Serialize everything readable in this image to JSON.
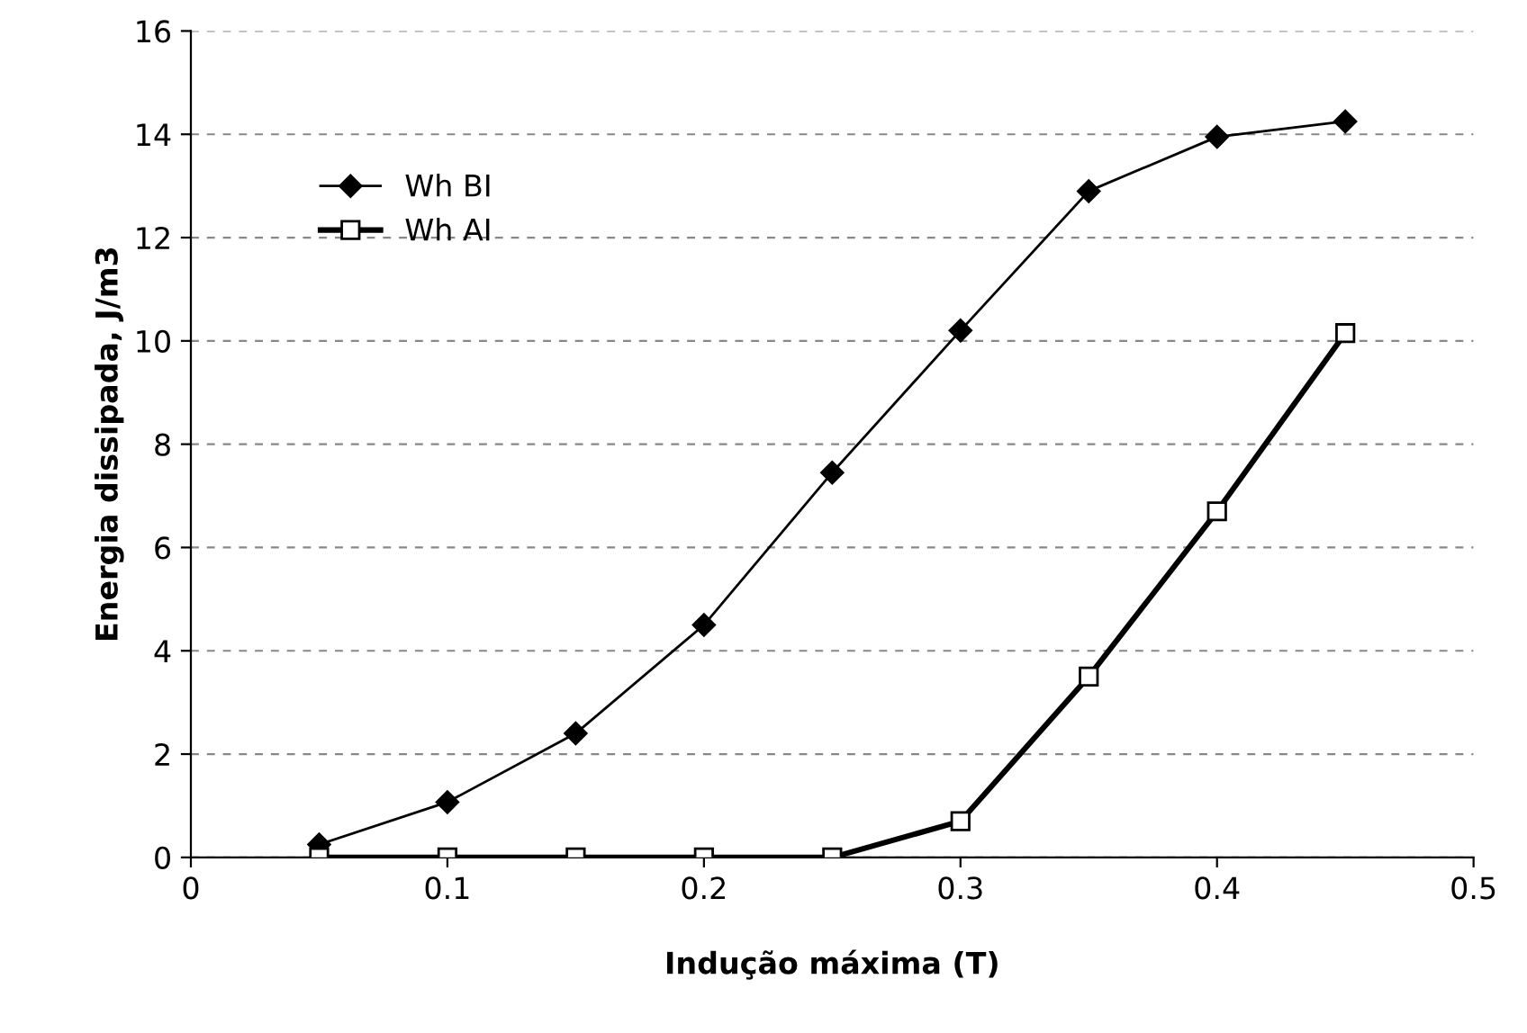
{
  "chart_data": {
    "type": "line",
    "xlabel": "Indução máxima (T)",
    "ylabel": "Energia dissipada, J/m3",
    "x": [
      0.05,
      0.1,
      0.15,
      0.2,
      0.25,
      0.3,
      0.35,
      0.4,
      0.45
    ],
    "series": [
      {
        "name": "Wh BI",
        "color": "#000000",
        "marker": "diamond",
        "values": [
          0.25,
          1.07,
          2.4,
          4.5,
          7.45,
          10.2,
          12.9,
          13.95,
          14.25
        ]
      },
      {
        "name": "Wh AI",
        "color": "#000000",
        "marker": "square",
        "values": [
          0,
          0,
          0,
          0,
          0,
          0.7,
          3.5,
          6.7,
          10.15
        ]
      }
    ],
    "xlim": [
      0,
      0.5
    ],
    "xticks": [
      0,
      0.1,
      0.2,
      0.3,
      0.4,
      0.5
    ],
    "ylim": [
      0,
      16
    ],
    "yticks": [
      0,
      2,
      4,
      6,
      8,
      10,
      12,
      14,
      16
    ],
    "grid": "y",
    "legend": "top left"
  }
}
